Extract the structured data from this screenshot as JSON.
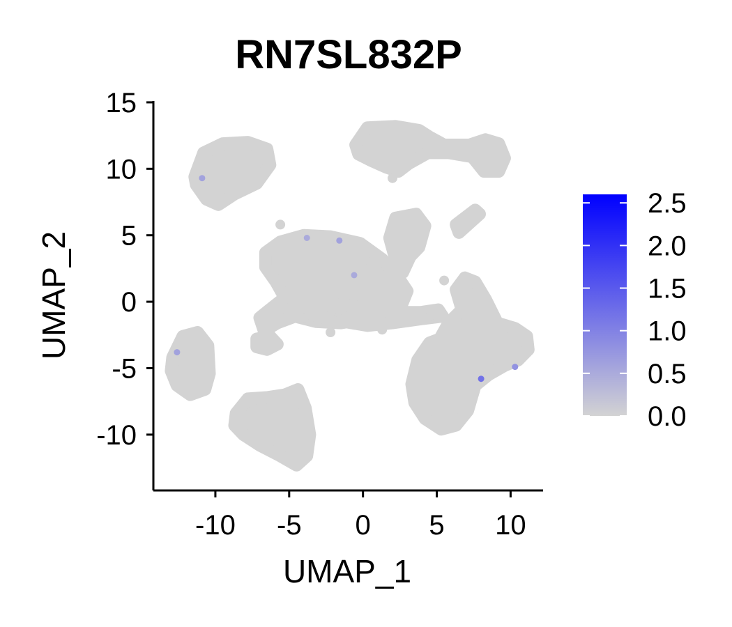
{
  "chart_data": {
    "type": "scatter",
    "title": "RN7SL832P",
    "xlabel": "UMAP_1",
    "ylabel": "UMAP_2",
    "xlim": [
      -14.2,
      12.2
    ],
    "ylim": [
      -14.2,
      15.1
    ],
    "xticks": [
      -10,
      -5,
      0,
      5,
      10
    ],
    "xtick_labels": [
      "-10",
      "-5",
      "0",
      "5",
      "10"
    ],
    "yticks": [
      -10,
      -5,
      0,
      5,
      10,
      15
    ],
    "ytick_labels": [
      "-10",
      "-5",
      "0",
      "5",
      "10",
      "15"
    ],
    "grid": false,
    "legend_placement": "right",
    "colorbar": {
      "min": 0.0,
      "max": 2.6,
      "low_color": "#d3d3d3",
      "high_color": "#0000ff",
      "ticks": [
        0.0,
        0.5,
        1.0,
        1.5,
        2.0,
        2.5
      ],
      "tick_labels": [
        "0.0",
        "0.5",
        "1.0",
        "1.5",
        "2.0",
        "2.5"
      ]
    },
    "point_color": "#d3d3d3",
    "clusters": [
      {
        "polygon": [
          [
            -11.4,
            9.4
          ],
          [
            -10.8,
            11.2
          ],
          [
            -9.5,
            11.9
          ],
          [
            -7.8,
            12.0
          ],
          [
            -6.5,
            11.5
          ],
          [
            -6.3,
            10.3
          ],
          [
            -7.2,
            8.9
          ],
          [
            -8.7,
            8.1
          ],
          [
            -9.8,
            7.3
          ],
          [
            -10.6,
            7.7
          ],
          [
            -11.3,
            8.8
          ]
        ]
      },
      {
        "polygon": [
          [
            -12.9,
            -4.2
          ],
          [
            -12.2,
            -2.6
          ],
          [
            -11.2,
            -2.3
          ],
          [
            -10.5,
            -3.3
          ],
          [
            -10.4,
            -5.4
          ],
          [
            -10.7,
            -6.6
          ],
          [
            -11.7,
            -7.0
          ],
          [
            -12.6,
            -6.3
          ],
          [
            -13.0,
            -5.2
          ]
        ]
      },
      {
        "polygon": [
          [
            -8.6,
            -8.4
          ],
          [
            -7.8,
            -7.3
          ],
          [
            -6.5,
            -7.2
          ],
          [
            -5.3,
            -7.0
          ],
          [
            -4.4,
            -6.6
          ],
          [
            -3.9,
            -8.0
          ],
          [
            -3.6,
            -10.0
          ],
          [
            -3.8,
            -11.6
          ],
          [
            -4.5,
            -12.3
          ],
          [
            -5.6,
            -11.6
          ],
          [
            -7.0,
            -10.8
          ],
          [
            -8.1,
            -10.0
          ],
          [
            -8.7,
            -9.3
          ]
        ]
      },
      {
        "polygon": [
          [
            -7.2,
            -2.8
          ],
          [
            -6.3,
            -2.6
          ],
          [
            -5.8,
            -3.2
          ],
          [
            -6.5,
            -3.6
          ],
          [
            -7.2,
            -3.4
          ]
        ]
      },
      {
        "polygon": [
          [
            -6.6,
            3.7
          ],
          [
            -5.6,
            4.5
          ],
          [
            -4.0,
            5.0
          ],
          [
            -2.2,
            4.9
          ],
          [
            -0.2,
            4.4
          ],
          [
            1.3,
            3.2
          ],
          [
            2.4,
            1.8
          ],
          [
            3.0,
            0.8
          ],
          [
            2.6,
            -0.3
          ],
          [
            1.5,
            -0.8
          ],
          [
            0.1,
            -1.3
          ],
          [
            -1.5,
            -1.6
          ],
          [
            -3.2,
            -1.5
          ],
          [
            -4.6,
            -1.1
          ],
          [
            -5.8,
            -1.6
          ],
          [
            -6.7,
            -2.2
          ],
          [
            -7.0,
            -1.2
          ],
          [
            -6.1,
            -0.4
          ],
          [
            -5.3,
            0.3
          ],
          [
            -5.9,
            1.5
          ],
          [
            -6.6,
            2.6
          ]
        ]
      },
      {
        "polygon": [
          [
            -3.6,
            -0.4
          ],
          [
            -1.8,
            -0.2
          ],
          [
            0.6,
            -0.5
          ],
          [
            2.0,
            -0.8
          ],
          [
            3.9,
            -0.8
          ],
          [
            5.1,
            -0.6
          ],
          [
            5.4,
            -1.1
          ],
          [
            3.9,
            -1.3
          ],
          [
            2.0,
            -1.6
          ],
          [
            0.3,
            -1.8
          ],
          [
            -1.8,
            -1.4
          ],
          [
            -3.4,
            -1.0
          ]
        ]
      },
      {
        "polygon": [
          [
            2.2,
            6.3
          ],
          [
            3.6,
            6.6
          ],
          [
            4.2,
            5.7
          ],
          [
            3.8,
            4.1
          ],
          [
            3.2,
            3.4
          ],
          [
            2.7,
            2.2
          ],
          [
            2.4,
            2.7
          ],
          [
            2.1,
            3.6
          ],
          [
            1.8,
            4.8
          ]
        ]
      },
      {
        "polygon": [
          [
            -0.5,
            11.8
          ],
          [
            0.3,
            13.1
          ],
          [
            2.2,
            13.2
          ],
          [
            3.8,
            12.9
          ],
          [
            4.5,
            12.4
          ],
          [
            5.5,
            11.8
          ],
          [
            7.2,
            11.8
          ],
          [
            8.3,
            12.2
          ],
          [
            9.2,
            11.9
          ],
          [
            9.6,
            10.8
          ],
          [
            9.2,
            9.8
          ],
          [
            8.2,
            9.8
          ],
          [
            7.4,
            10.9
          ],
          [
            5.8,
            11.2
          ],
          [
            4.4,
            11.2
          ],
          [
            3.1,
            10.4
          ],
          [
            2.4,
            9.8
          ],
          [
            1.6,
            10.1
          ],
          [
            0.6,
            10.6
          ],
          [
            -0.3,
            11.1
          ]
        ]
      },
      {
        "polygon": [
          [
            6.3,
            5.8
          ],
          [
            6.5,
            5.2
          ],
          [
            7.9,
            6.6
          ],
          [
            7.6,
            6.9
          ]
        ]
      },
      {
        "polygon": [
          [
            6.7,
            -0.6
          ],
          [
            6.3,
            0.9
          ],
          [
            6.9,
            1.8
          ],
          [
            7.6,
            1.5
          ],
          [
            8.3,
            0.2
          ],
          [
            9.1,
            -1.6
          ],
          [
            10.3,
            -2.0
          ],
          [
            11.1,
            -2.6
          ],
          [
            11.2,
            -3.6
          ],
          [
            10.5,
            -4.4
          ],
          [
            9.6,
            -4.8
          ],
          [
            8.5,
            -5.5
          ],
          [
            7.6,
            -6.3
          ],
          [
            7.1,
            -8.2
          ],
          [
            6.3,
            -9.3
          ],
          [
            5.3,
            -9.6
          ],
          [
            4.2,
            -8.8
          ],
          [
            3.5,
            -7.6
          ],
          [
            3.3,
            -6.2
          ],
          [
            3.7,
            -4.4
          ],
          [
            4.5,
            -3.1
          ],
          [
            5.2,
            -2.8
          ],
          [
            5.8,
            -1.6
          ]
        ]
      }
    ],
    "highlight_points": [
      {
        "x": -10.9,
        "y": 9.3,
        "value": 0.6
      },
      {
        "x": -12.6,
        "y": -3.8,
        "value": 0.6
      },
      {
        "x": -3.8,
        "y": 4.8,
        "value": 0.5
      },
      {
        "x": -1.6,
        "y": 4.6,
        "value": 0.6
      },
      {
        "x": -0.6,
        "y": 2.0,
        "value": 0.5
      },
      {
        "x": 8.0,
        "y": -5.8,
        "value": 1.2
      },
      {
        "x": 10.3,
        "y": -4.9,
        "value": 0.8
      }
    ],
    "outlier_points": [
      {
        "x": -4.0,
        "y": -1.2
      },
      {
        "x": -2.2,
        "y": -2.3
      },
      {
        "x": 5.5,
        "y": 1.6
      },
      {
        "x": 1.3,
        "y": -2.1
      },
      {
        "x": 2.0,
        "y": 9.3
      },
      {
        "x": -5.6,
        "y": 5.8
      },
      {
        "x": -2.0,
        "y": -1.4
      },
      {
        "x": 4.6,
        "y": -1.0
      },
      {
        "x": 0.5,
        "y": 2.6
      }
    ]
  }
}
